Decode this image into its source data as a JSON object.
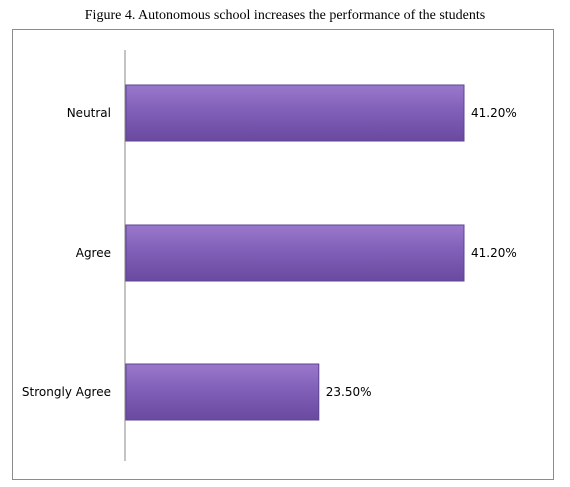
{
  "chart_data": {
    "type": "bar",
    "orientation": "horizontal",
    "title": "Figure 4. Autonomous school increases the performance of the students",
    "categories": [
      "Neutral",
      "Agree",
      "Strongly Agree"
    ],
    "values": [
      41.2,
      41.2,
      23.5
    ],
    "value_labels": [
      "41.20%",
      "41.20%",
      "23.50%"
    ],
    "xlim": [
      0,
      50
    ],
    "grid": false,
    "legend": "none",
    "bar_color": "#7e57b4"
  }
}
